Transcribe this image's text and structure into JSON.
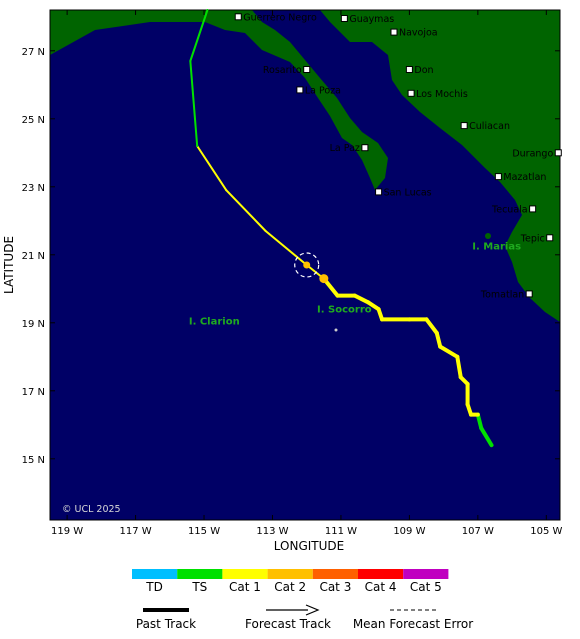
{
  "axes": {
    "xlabel": "LONGITUDE",
    "ylabel": "LATITUDE",
    "lon_ticks": [
      {
        "value": -119,
        "label": "119 W"
      },
      {
        "value": -117,
        "label": "117 W"
      },
      {
        "value": -115,
        "label": "115 W"
      },
      {
        "value": -113,
        "label": "113 W"
      },
      {
        "value": -111,
        "label": "111 W"
      },
      {
        "value": -109,
        "label": "109 W"
      },
      {
        "value": -107,
        "label": "107 W"
      },
      {
        "value": -105,
        "label": "105 W"
      }
    ],
    "lat_ticks": [
      {
        "value": 27,
        "label": "27 N"
      },
      {
        "value": 25,
        "label": "25 N"
      },
      {
        "value": 23,
        "label": "23 N"
      },
      {
        "value": 21,
        "label": "21 N"
      },
      {
        "value": 19,
        "label": "19 N"
      },
      {
        "value": 17,
        "label": "17 N"
      },
      {
        "value": 15,
        "label": "15 N"
      }
    ],
    "lon_range": [
      -119.5,
      -104.6
    ],
    "lat_range": [
      13.2,
      28.2
    ]
  },
  "colors": {
    "ocean": "#000066",
    "land": "#006400",
    "forecast_error_circle": "#ffffff",
    "island_label": "#1faa1f"
  },
  "cities": [
    {
      "name": "Guerrero Negro",
      "lon": -114.0,
      "lat": 28.0,
      "anchor": "start"
    },
    {
      "name": "Guaymas",
      "lon": -110.9,
      "lat": 27.95,
      "anchor": "start"
    },
    {
      "name": "Navojoa",
      "lon": -109.45,
      "lat": 27.55,
      "anchor": "start"
    },
    {
      "name": "Rosarito",
      "lon": -112.0,
      "lat": 26.45,
      "anchor": "end"
    },
    {
      "name": "Don",
      "lon": -109.0,
      "lat": 26.45,
      "anchor": "start"
    },
    {
      "name": "La Poza",
      "lon": -112.2,
      "lat": 25.85,
      "anchor": "start"
    },
    {
      "name": "Los Mochis",
      "lon": -108.95,
      "lat": 25.75,
      "anchor": "start"
    },
    {
      "name": "Culiacan",
      "lon": -107.4,
      "lat": 24.8,
      "anchor": "start"
    },
    {
      "name": "La Paz",
      "lon": -110.3,
      "lat": 24.15,
      "anchor": "end"
    },
    {
      "name": "Durango",
      "lon": -104.65,
      "lat": 24.0,
      "anchor": "end"
    },
    {
      "name": "Mazatlan",
      "lon": -106.4,
      "lat": 23.3,
      "anchor": "start"
    },
    {
      "name": "San Lucas",
      "lon": -109.9,
      "lat": 22.85,
      "anchor": "start"
    },
    {
      "name": "Tecuala",
      "lon": -105.4,
      "lat": 22.35,
      "anchor": "end"
    },
    {
      "name": "Tepic",
      "lon": -104.9,
      "lat": 21.5,
      "anchor": "end"
    },
    {
      "name": "Tomatlan",
      "lon": -105.5,
      "lat": 19.85,
      "anchor": "end"
    }
  ],
  "islands": [
    {
      "name": "I. Marias",
      "lon": -106.45,
      "lat": 21.15
    },
    {
      "name": "I. Socorro",
      "lon": -110.9,
      "lat": 19.3
    },
    {
      "name": "I. Clarion",
      "lon": -114.7,
      "lat": 18.95
    }
  ],
  "copyright": "© UCL 2025",
  "storm": {
    "past_track": [
      {
        "lon": -106.6,
        "lat": 15.4,
        "category": "TS"
      },
      {
        "lon": -106.9,
        "lat": 15.9,
        "category": "TS"
      },
      {
        "lon": -107.0,
        "lat": 16.3,
        "category": "TS"
      },
      {
        "lon": -107.2,
        "lat": 16.3,
        "category": "Cat 1"
      },
      {
        "lon": -107.3,
        "lat": 16.6,
        "category": "Cat 1"
      },
      {
        "lon": -107.3,
        "lat": 17.2,
        "category": "Cat 1"
      },
      {
        "lon": -107.5,
        "lat": 17.4,
        "category": "Cat 1"
      },
      {
        "lon": -107.6,
        "lat": 18.0,
        "category": "Cat 1"
      },
      {
        "lon": -108.1,
        "lat": 18.3,
        "category": "Cat 1"
      },
      {
        "lon": -108.2,
        "lat": 18.7,
        "category": "Cat 1"
      },
      {
        "lon": -108.5,
        "lat": 19.1,
        "category": "Cat 1"
      },
      {
        "lon": -109.0,
        "lat": 19.1,
        "category": "Cat 1"
      },
      {
        "lon": -109.8,
        "lat": 19.1,
        "category": "Cat 1"
      },
      {
        "lon": -109.9,
        "lat": 19.4,
        "category": "Cat 1"
      },
      {
        "lon": -110.2,
        "lat": 19.6,
        "category": "Cat 1"
      },
      {
        "lon": -110.6,
        "lat": 19.8,
        "category": "Cat 1"
      },
      {
        "lon": -111.1,
        "lat": 19.8,
        "category": "Cat 1"
      },
      {
        "lon": -111.5,
        "lat": 20.3,
        "category": "Cat 1"
      }
    ],
    "forecast_track": [
      {
        "lon": -111.5,
        "lat": 20.3,
        "category": "Cat 1"
      },
      {
        "lon": -112.0,
        "lat": 20.7,
        "category": "Cat 1"
      },
      {
        "lon": -113.2,
        "lat": 21.7,
        "category": "Cat 1"
      },
      {
        "lon": -114.35,
        "lat": 22.9,
        "category": "Cat 1"
      },
      {
        "lon": -115.2,
        "lat": 24.2,
        "category": "Cat 1"
      },
      {
        "lon": -115.4,
        "lat": 26.7,
        "category": "TS"
      },
      {
        "lon": -114.9,
        "lat": 28.2,
        "category": "TS"
      }
    ],
    "markers": [
      {
        "lon": -111.5,
        "lat": 20.3,
        "category": "Cat 1"
      },
      {
        "lon": -112.0,
        "lat": 20.7,
        "category": "Cat 1"
      }
    ],
    "forecast_error_circle": {
      "lon": -112.0,
      "lat": 20.7,
      "radius_deg": 0.35
    }
  },
  "legend": {
    "categories": [
      {
        "label": "TD",
        "color": "#00bfff"
      },
      {
        "label": "TS",
        "color": "#00e000"
      },
      {
        "label": "Cat 1",
        "color": "#ffff00"
      },
      {
        "label": "Cat 2",
        "color": "#ffc000"
      },
      {
        "label": "Cat 3",
        "color": "#ff6000"
      },
      {
        "label": "Cat 4",
        "color": "#ff0000"
      },
      {
        "label": "Cat 5",
        "color": "#c000c0"
      }
    ],
    "past_track_label": "Past Track",
    "forecast_track_label": "Forecast Track",
    "mean_error_label": "Mean Forecast Error"
  }
}
